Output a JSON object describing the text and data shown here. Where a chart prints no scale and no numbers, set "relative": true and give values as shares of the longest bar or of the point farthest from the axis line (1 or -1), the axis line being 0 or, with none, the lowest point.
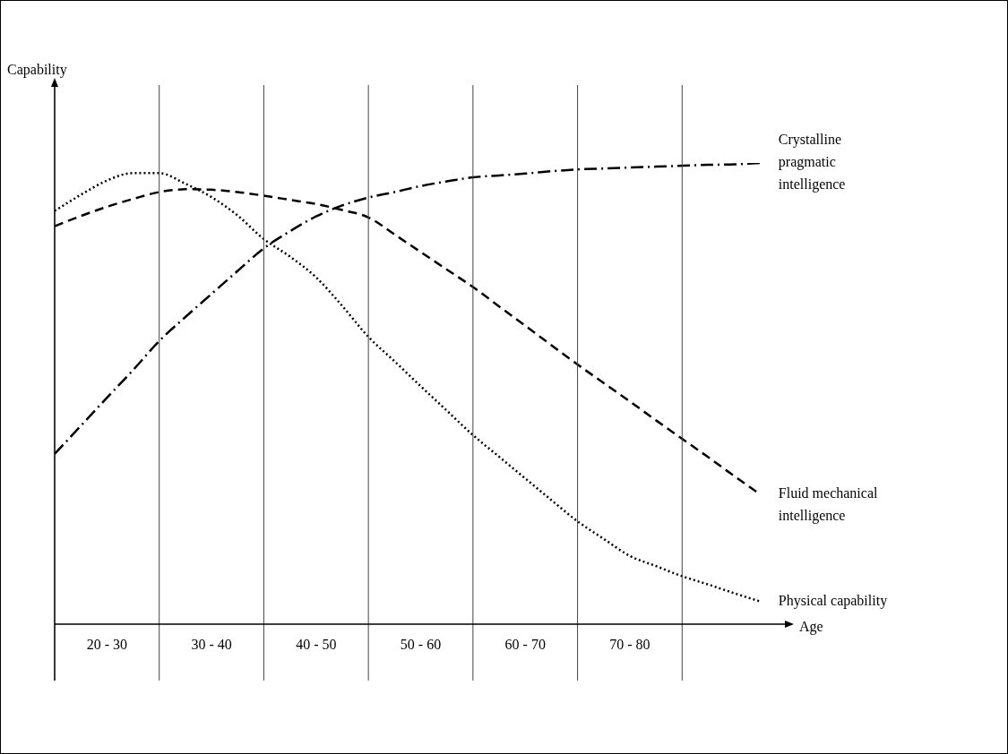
{
  "chart_data": {
    "type": "line",
    "relative": true,
    "xlabel": "Age",
    "annotations": [
      "Capability"
    ],
    "grid": "x",
    "categories": [
      null,
      null,
      "20 - 30",
      null,
      null,
      null,
      "30 - 40",
      null,
      null,
      null,
      "40 - 50",
      null,
      null,
      null,
      "50 - 60",
      null,
      null,
      null,
      "60 - 70",
      null,
      null,
      null,
      "70 - 80",
      null,
      null,
      null,
      null,
      null,
      null
    ],
    "marker": "none",
    "legend": false,
    "series": [
      {
        "name": "Crystalline pragmatic intelligence",
        "color": "#000000",
        "line_style": "dashdot",
        "values": [
          0.369,
          0.43,
          0.491,
          0.551,
          0.614,
          0.666,
          0.716,
          0.766,
          0.815,
          0.852,
          0.884,
          0.908,
          0.925,
          0.937,
          0.95,
          0.96,
          0.969,
          0.973,
          0.977,
          0.982,
          0.986,
          0.988,
          0.99,
          0.992,
          0.994,
          0.996,
          0.997,
          1,
          null
        ]
      },
      {
        "name": "Fluid mechanical intelligence",
        "color": "#000000",
        "line_style": "dashed",
        "values": [
          0.863,
          0.885,
          0.905,
          0.922,
          0.937,
          0.943,
          0.942,
          0.937,
          0.929,
          0.92,
          0.911,
          0.898,
          0.882,
          0.845,
          0.807,
          0.769,
          0.731,
          0.689,
          0.647,
          0.605,
          0.563,
          0.523,
          0.483,
          0.442,
          0.402,
          0.362,
          0.321,
          0.281,
          null
        ]
      },
      {
        "name": "Physical capability",
        "color": "#000000",
        "line_style": "dotted",
        "values": [
          0.896,
          0.931,
          0.962,
          0.978,
          0.978,
          0.955,
          0.926,
          0.886,
          0.835,
          0.797,
          0.752,
          0.69,
          0.623,
          0.57,
          0.516,
          0.463,
          0.41,
          0.363,
          0.316,
          0.269,
          0.223,
          0.185,
          0.148,
          0.126,
          0.104,
          0.086,
          0.067,
          0.049,
          null
        ]
      }
    ]
  }
}
